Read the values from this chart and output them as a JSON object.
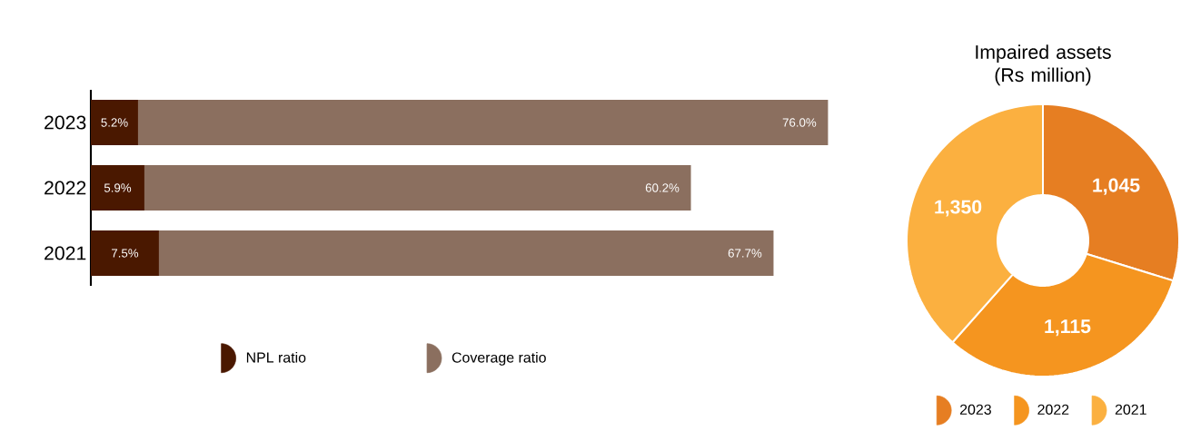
{
  "chart_data": [
    {
      "type": "bar",
      "orientation": "horizontal",
      "stacked": true,
      "categories": [
        "2023",
        "2022",
        "2021"
      ],
      "tick_labels": "y",
      "legend": "bottom",
      "series": [
        {
          "name": "NPL ratio",
          "color": "#4a1800",
          "values": [
            5.2,
            5.9,
            7.5
          ],
          "value_labels": [
            "5.2%",
            "5.9%",
            "7.5%"
          ]
        },
        {
          "name": "Coverage ratio",
          "color": "#8b6f5f",
          "values": [
            76.0,
            60.2,
            67.7
          ],
          "value_labels": [
            "76.0%",
            "60.2%",
            "67.7%"
          ]
        }
      ]
    },
    {
      "type": "donut",
      "title": "Impaired assets (Rs million)",
      "categories": [
        "2023",
        "2022",
        "2021"
      ],
      "values": [
        1045,
        1115,
        1350
      ],
      "colors": [
        "#e67e22",
        "#f5951f",
        "#fbb040"
      ],
      "value_labels": [
        "1,045",
        "1,115",
        "1,350"
      ],
      "legend": "bottom"
    }
  ]
}
